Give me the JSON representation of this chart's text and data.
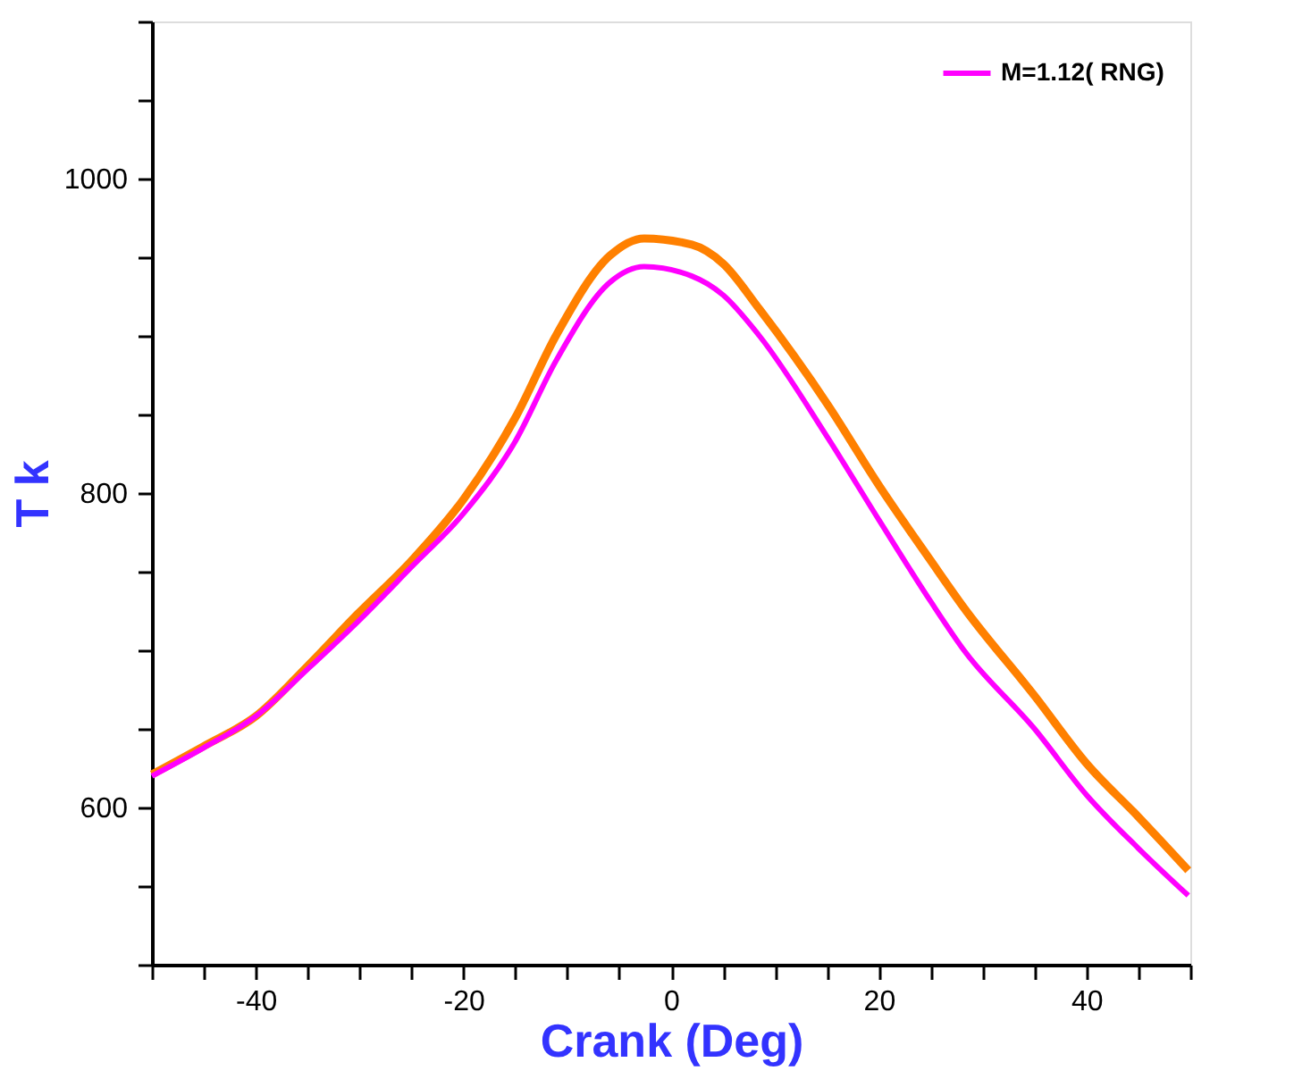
{
  "chart_data": {
    "type": "line",
    "xlabel": "Crank (Deg)",
    "ylabel": "T k",
    "xlim": [
      -50,
      50
    ],
    "ylim": [
      500,
      1100
    ],
    "xticks": [
      {
        "value": -50,
        "label": null
      },
      {
        "value": -45,
        "label": null
      },
      -40,
      {
        "value": -35,
        "label": null
      },
      {
        "value": -30,
        "label": null
      },
      {
        "value": -25,
        "label": null
      },
      -20,
      {
        "value": -15,
        "label": null
      },
      {
        "value": -10,
        "label": null
      },
      {
        "value": -5,
        "label": null
      },
      0,
      {
        "value": 5,
        "label": null
      },
      {
        "value": 10,
        "label": null
      },
      {
        "value": 15,
        "label": null
      },
      20,
      {
        "value": 25,
        "label": null
      },
      {
        "value": 30,
        "label": null
      },
      {
        "value": 35,
        "label": null
      },
      40,
      {
        "value": 45,
        "label": null
      },
      {
        "value": 50,
        "label": null
      }
    ],
    "yticks": [
      {
        "value": 500,
        "label": null
      },
      {
        "value": 550,
        "label": null
      },
      600,
      {
        "value": 650,
        "label": null
      },
      {
        "value": 700,
        "label": null
      },
      {
        "value": 750,
        "label": null
      },
      800,
      {
        "value": 850,
        "label": null
      },
      {
        "value": 900,
        "label": null
      },
      {
        "value": 950,
        "label": null
      },
      1000,
      {
        "value": 1050,
        "label": null
      },
      {
        "value": 1100,
        "label": null
      }
    ],
    "grid": false,
    "legend": "top right",
    "marker": "none",
    "line_style": "solid",
    "x": [
      -50,
      -45,
      -40,
      -35,
      -30.2,
      -25,
      -20,
      -15,
      -11.1,
      -5.9,
      -2.6,
      2,
      5,
      8.5,
      15.1,
      20,
      25,
      28.2,
      35,
      40,
      45,
      49.8
    ],
    "series": [
      {
        "color": "#ff8000",
        "values": [
          621,
          639,
          658,
          690,
          723,
          757,
          796,
          848,
          900,
          951,
          962,
          958,
          946,
          917,
          856,
          805,
          757,
          727,
          671,
          628,
          594,
          560
        ]
      },
      {
        "name": "M=1.12( RNG)",
        "color": "#ff00ff",
        "values": [
          620,
          638,
          658,
          688,
          718,
          753,
          787,
          833,
          884,
          934,
          944,
          938,
          926,
          900,
          835,
          783,
          731,
          700,
          650,
          608,
          574,
          544
        ]
      }
    ]
  }
}
